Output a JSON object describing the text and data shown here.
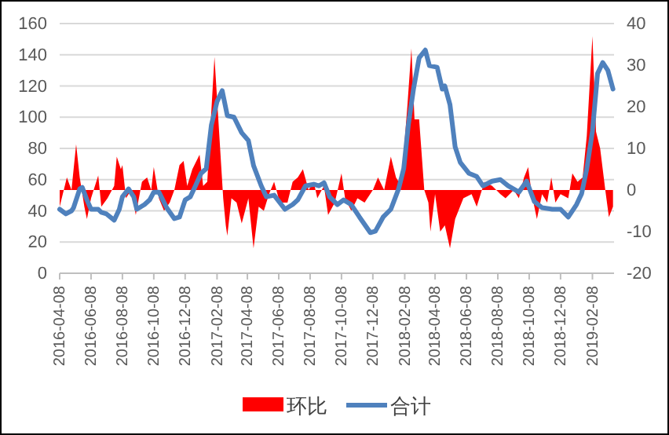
{
  "chart_data": {
    "type": "area",
    "xlim": [
      "2016-04-08",
      "2019-03-22"
    ],
    "xticks": [
      "2016-04-08",
      "2016-06-08",
      "2016-08-08",
      "2016-10-08",
      "2016-12-08",
      "2017-02-08",
      "2017-04-08",
      "2017-06-08",
      "2017-08-08",
      "2017-10-08",
      "2017-12-08",
      "2018-02-08",
      "2018-04-08",
      "2018-06-08",
      "2018-08-08",
      "2018-10-08",
      "2018-12-08",
      "2019-02-08"
    ],
    "ylim": [
      0,
      160
    ],
    "yticks": [
      0,
      20,
      40,
      60,
      80,
      100,
      120,
      140,
      160
    ],
    "y2lim": [
      -20,
      40
    ],
    "y2ticks": [
      -20,
      -10,
      0,
      10,
      20,
      30,
      40
    ],
    "grid": "y",
    "legend": "bottom",
    "series": [
      {
        "name": "环比",
        "axis": "y2",
        "color": "#ff0000",
        "x": [
          "2016-04-08",
          "2016-04-22",
          "2016-05-01",
          "2016-05-10",
          "2016-05-17",
          "2016-05-26",
          "2016-05-31",
          "2016-06-08",
          "2016-06-22",
          "2016-06-28",
          "2016-07-10",
          "2016-07-23",
          "2016-07-28",
          "2016-08-05",
          "2016-08-08",
          "2016-08-15",
          "2016-08-25",
          "2016-09-03",
          "2016-09-15",
          "2016-09-25",
          "2016-10-03",
          "2016-10-08",
          "2016-10-18",
          "2016-10-28",
          "2016-11-08",
          "2016-11-17",
          "2016-11-27",
          "2016-12-05",
          "2016-12-12",
          "2016-12-22",
          "2017-01-05",
          "2017-01-12",
          "2017-01-20",
          "2017-02-03",
          "2017-02-12",
          "2017-02-20",
          "2017-02-25",
          "2017-02-28",
          "2017-03-08",
          "2017-03-18",
          "2017-03-28",
          "2017-04-10",
          "2017-04-20",
          "2017-04-30",
          "2017-05-10",
          "2017-05-20",
          "2017-05-30",
          "2017-06-10",
          "2017-06-25",
          "2017-07-05",
          "2017-07-15",
          "2017-07-25",
          "2017-08-05",
          "2017-08-15",
          "2017-08-22",
          "2017-09-04",
          "2017-09-12",
          "2017-09-25",
          "2017-10-08",
          "2017-10-15",
          "2017-10-27",
          "2017-11-08",
          "2017-11-22",
          "2017-12-08",
          "2017-12-18",
          "2017-12-30",
          "2018-01-12",
          "2018-01-22",
          "2018-02-01",
          "2018-02-13",
          "2018-02-21",
          "2018-02-27",
          "2018-03-08",
          "2018-03-18",
          "2018-03-26",
          "2018-03-30",
          "2018-04-08",
          "2018-04-18",
          "2018-04-27",
          "2018-05-07",
          "2018-05-17",
          "2018-06-02",
          "2018-06-18",
          "2018-06-28",
          "2018-07-13",
          "2018-07-28",
          "2018-08-13",
          "2018-08-23",
          "2018-09-08",
          "2018-09-18",
          "2018-09-28",
          "2018-10-06",
          "2018-10-13",
          "2018-10-23",
          "2018-11-02",
          "2018-11-12",
          "2018-11-20",
          "2018-11-28",
          "2018-12-08",
          "2018-12-23",
          "2018-12-31",
          "2019-01-10",
          "2019-01-20",
          "2019-01-28",
          "2019-02-08",
          "2019-02-15",
          "2019-02-23",
          "2019-03-05",
          "2019-03-12",
          "2019-03-20"
        ],
        "values": [
          -4,
          3,
          0,
          11,
          3,
          -4,
          -7,
          -2,
          3.5,
          -4,
          -2,
          1,
          8,
          5,
          6,
          -2,
          0,
          -6,
          2,
          3,
          0,
          5.5,
          -2,
          -5,
          -3,
          0,
          6,
          7,
          1,
          5,
          8.5,
          1,
          2,
          32,
          14,
          -2,
          -8.5,
          -11,
          -2,
          -3,
          -8,
          -2,
          -14,
          -4,
          -5,
          -1,
          2,
          -3,
          -3,
          2,
          3,
          5,
          0,
          2,
          -2,
          1,
          -6,
          -3,
          4,
          -2,
          -5,
          -2,
          -3,
          0,
          3,
          0,
          8,
          3,
          1,
          20,
          34,
          17,
          17,
          0,
          -3,
          -10,
          -1,
          -10,
          -8.5,
          -14,
          -7,
          -2,
          -1,
          -4,
          2,
          1,
          -1,
          -2,
          0,
          -2,
          3,
          5.5,
          -1,
          -7,
          -1,
          -3,
          3,
          -3,
          -1,
          -2,
          4,
          2,
          3,
          13,
          37,
          14,
          10,
          0,
          -6.5,
          -4
        ]
      },
      {
        "name": "合计",
        "type": "line",
        "color": "#4f81bd",
        "x": [
          "2016-04-08",
          "2016-04-20",
          "2016-05-01",
          "2016-05-05",
          "2016-05-17",
          "2016-05-22",
          "2016-05-31",
          "2016-06-08",
          "2016-06-22",
          "2016-06-28",
          "2016-07-08",
          "2016-07-23",
          "2016-08-02",
          "2016-08-08",
          "2016-08-20",
          "2016-08-30",
          "2016-09-05",
          "2016-09-20",
          "2016-09-30",
          "2016-10-08",
          "2016-10-18",
          "2016-11-02",
          "2016-11-17",
          "2016-11-27",
          "2016-12-08",
          "2016-12-18",
          "2016-12-28",
          "2017-01-08",
          "2017-01-18",
          "2017-01-28",
          "2017-02-08",
          "2017-02-18",
          "2017-02-28",
          "2017-03-13",
          "2017-03-28",
          "2017-04-10",
          "2017-04-20",
          "2017-05-05",
          "2017-05-15",
          "2017-05-30",
          "2017-06-20",
          "2017-07-05",
          "2017-07-15",
          "2017-07-30",
          "2017-08-15",
          "2017-08-25",
          "2017-09-04",
          "2017-09-15",
          "2017-09-30",
          "2017-10-12",
          "2017-10-27",
          "2017-11-12",
          "2017-12-03",
          "2017-12-13",
          "2017-12-28",
          "2018-01-12",
          "2018-01-27",
          "2018-02-06",
          "2018-02-15",
          "2018-02-25",
          "2018-03-08",
          "2018-03-20",
          "2018-03-28",
          "2018-04-12",
          "2018-04-22",
          "2018-04-27",
          "2018-05-07",
          "2018-05-17",
          "2018-05-27",
          "2018-06-13",
          "2018-06-28",
          "2018-07-10",
          "2018-07-28",
          "2018-08-13",
          "2018-08-28",
          "2018-09-18",
          "2018-10-03",
          "2018-10-18",
          "2018-11-02",
          "2018-11-22",
          "2018-12-08",
          "2018-12-23",
          "2019-01-08",
          "2019-01-18",
          "2019-01-28",
          "2019-02-08",
          "2019-02-18",
          "2019-02-28",
          "2019-03-10",
          "2019-03-20"
        ],
        "values": [
          41,
          38,
          40,
          42,
          54,
          55,
          47,
          41,
          41,
          39,
          38,
          34,
          41,
          49,
          54,
          49,
          41,
          44,
          47,
          52,
          52,
          42,
          35,
          36,
          47,
          49,
          56,
          64,
          67,
          95,
          110,
          117,
          101,
          100,
          90,
          85,
          69,
          56,
          49,
          50,
          41,
          44,
          47,
          56,
          57,
          56,
          58,
          49,
          44,
          47,
          44,
          36,
          26,
          27,
          36,
          41,
          54,
          67,
          95,
          118,
          138,
          143,
          133,
          132,
          118,
          120,
          108,
          81,
          71,
          64,
          62,
          56,
          59,
          60,
          56,
          52,
          59,
          46,
          42,
          41,
          41,
          36,
          44,
          51,
          67,
          91,
          128,
          135,
          130,
          118
        ]
      }
    ]
  }
}
